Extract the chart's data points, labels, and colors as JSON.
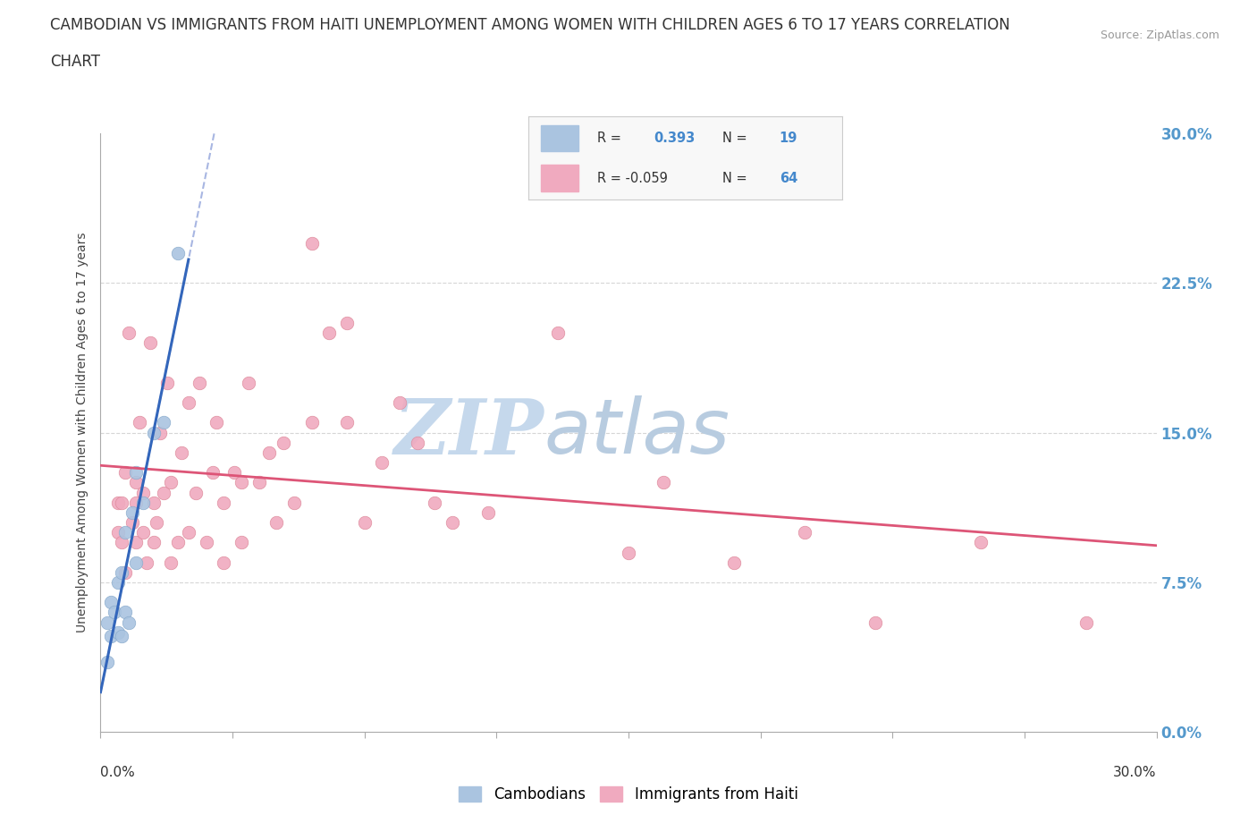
{
  "title_line1": "CAMBODIAN VS IMMIGRANTS FROM HAITI UNEMPLOYMENT AMONG WOMEN WITH CHILDREN AGES 6 TO 17 YEARS CORRELATION",
  "title_line2": "CHART",
  "source": "Source: ZipAtlas.com",
  "ylabel": "Unemployment Among Women with Children Ages 6 to 17 years",
  "xlim": [
    0.0,
    0.3
  ],
  "ylim": [
    0.0,
    0.3
  ],
  "grid_color": "#cccccc",
  "background_color": "#ffffff",
  "cambodian_color": "#aac4e0",
  "cambodian_edge": "#88aacc",
  "haiti_color": "#f0aabf",
  "haiti_edge": "#dd8899",
  "trend_cambodian_color": "#3366bb",
  "trend_haiti_color": "#dd5577",
  "trend_dashed_color": "#99aadd",
  "R_cambodian": 0.393,
  "N_cambodian": 19,
  "R_haiti": -0.059,
  "N_haiti": 64,
  "cambodian_x": [
    0.002,
    0.002,
    0.003,
    0.003,
    0.004,
    0.005,
    0.005,
    0.006,
    0.006,
    0.007,
    0.007,
    0.008,
    0.009,
    0.01,
    0.01,
    0.012,
    0.015,
    0.018,
    0.022
  ],
  "cambodian_y": [
    0.035,
    0.055,
    0.048,
    0.065,
    0.06,
    0.05,
    0.075,
    0.048,
    0.08,
    0.06,
    0.1,
    0.055,
    0.11,
    0.085,
    0.13,
    0.115,
    0.15,
    0.155,
    0.24
  ],
  "haiti_x": [
    0.005,
    0.005,
    0.006,
    0.006,
    0.007,
    0.007,
    0.008,
    0.009,
    0.01,
    0.01,
    0.01,
    0.011,
    0.012,
    0.012,
    0.013,
    0.014,
    0.015,
    0.015,
    0.016,
    0.017,
    0.018,
    0.019,
    0.02,
    0.02,
    0.022,
    0.023,
    0.025,
    0.025,
    0.027,
    0.028,
    0.03,
    0.032,
    0.033,
    0.035,
    0.035,
    0.038,
    0.04,
    0.04,
    0.042,
    0.045,
    0.048,
    0.05,
    0.052,
    0.055,
    0.06,
    0.06,
    0.065,
    0.07,
    0.07,
    0.075,
    0.08,
    0.085,
    0.09,
    0.095,
    0.1,
    0.11,
    0.13,
    0.15,
    0.16,
    0.18,
    0.2,
    0.22,
    0.25,
    0.28
  ],
  "haiti_y": [
    0.1,
    0.115,
    0.095,
    0.115,
    0.08,
    0.13,
    0.2,
    0.105,
    0.095,
    0.115,
    0.125,
    0.155,
    0.1,
    0.12,
    0.085,
    0.195,
    0.095,
    0.115,
    0.105,
    0.15,
    0.12,
    0.175,
    0.085,
    0.125,
    0.095,
    0.14,
    0.1,
    0.165,
    0.12,
    0.175,
    0.095,
    0.13,
    0.155,
    0.085,
    0.115,
    0.13,
    0.095,
    0.125,
    0.175,
    0.125,
    0.14,
    0.105,
    0.145,
    0.115,
    0.245,
    0.155,
    0.2,
    0.155,
    0.205,
    0.105,
    0.135,
    0.165,
    0.145,
    0.115,
    0.105,
    0.11,
    0.2,
    0.09,
    0.125,
    0.085,
    0.1,
    0.055,
    0.095,
    0.055
  ],
  "watermark_zip": "ZIP",
  "watermark_atlas": "atlas",
  "watermark_color_zip": "#c5d8ec",
  "watermark_color_atlas": "#b8cce0"
}
